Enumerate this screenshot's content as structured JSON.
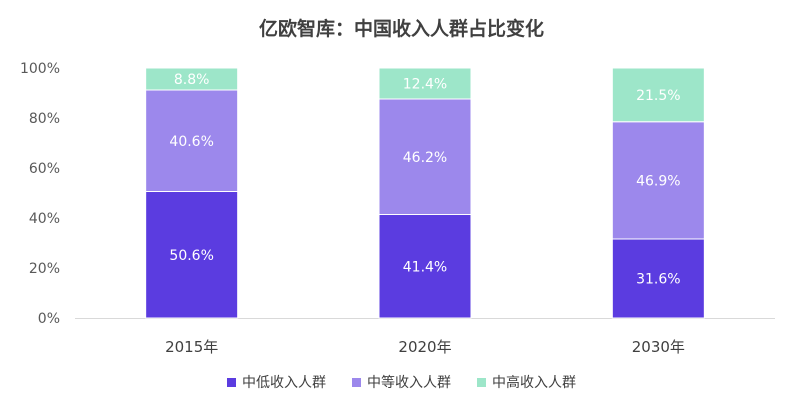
{
  "chart_data": {
    "type": "bar",
    "stacked": true,
    "title": "亿欧智库：中国收入人群占比变化",
    "categories": [
      "2015年",
      "2020年",
      "2030年"
    ],
    "series": [
      {
        "name": "中低收入人群",
        "color": "#5b3ce0",
        "values": [
          50.6,
          41.4,
          31.6
        ],
        "labels": [
          "50.6%",
          "41.4%",
          "31.6%"
        ]
      },
      {
        "name": "中等收入人群",
        "color": "#9c88ec",
        "values": [
          40.6,
          46.2,
          46.9
        ],
        "labels": [
          "40.6%",
          "46.2%",
          "46.9%"
        ]
      },
      {
        "name": "中高收入人群",
        "color": "#9de6c9",
        "values": [
          8.8,
          12.4,
          21.5
        ],
        "labels": [
          "8.8%",
          "12.4%",
          "21.5%"
        ]
      }
    ],
    "ylim": [
      0,
      100
    ],
    "yticks": [
      "0%",
      "20%",
      "40%",
      "60%",
      "80%",
      "100%"
    ],
    "legend_position": "bottom",
    "grid": false
  }
}
